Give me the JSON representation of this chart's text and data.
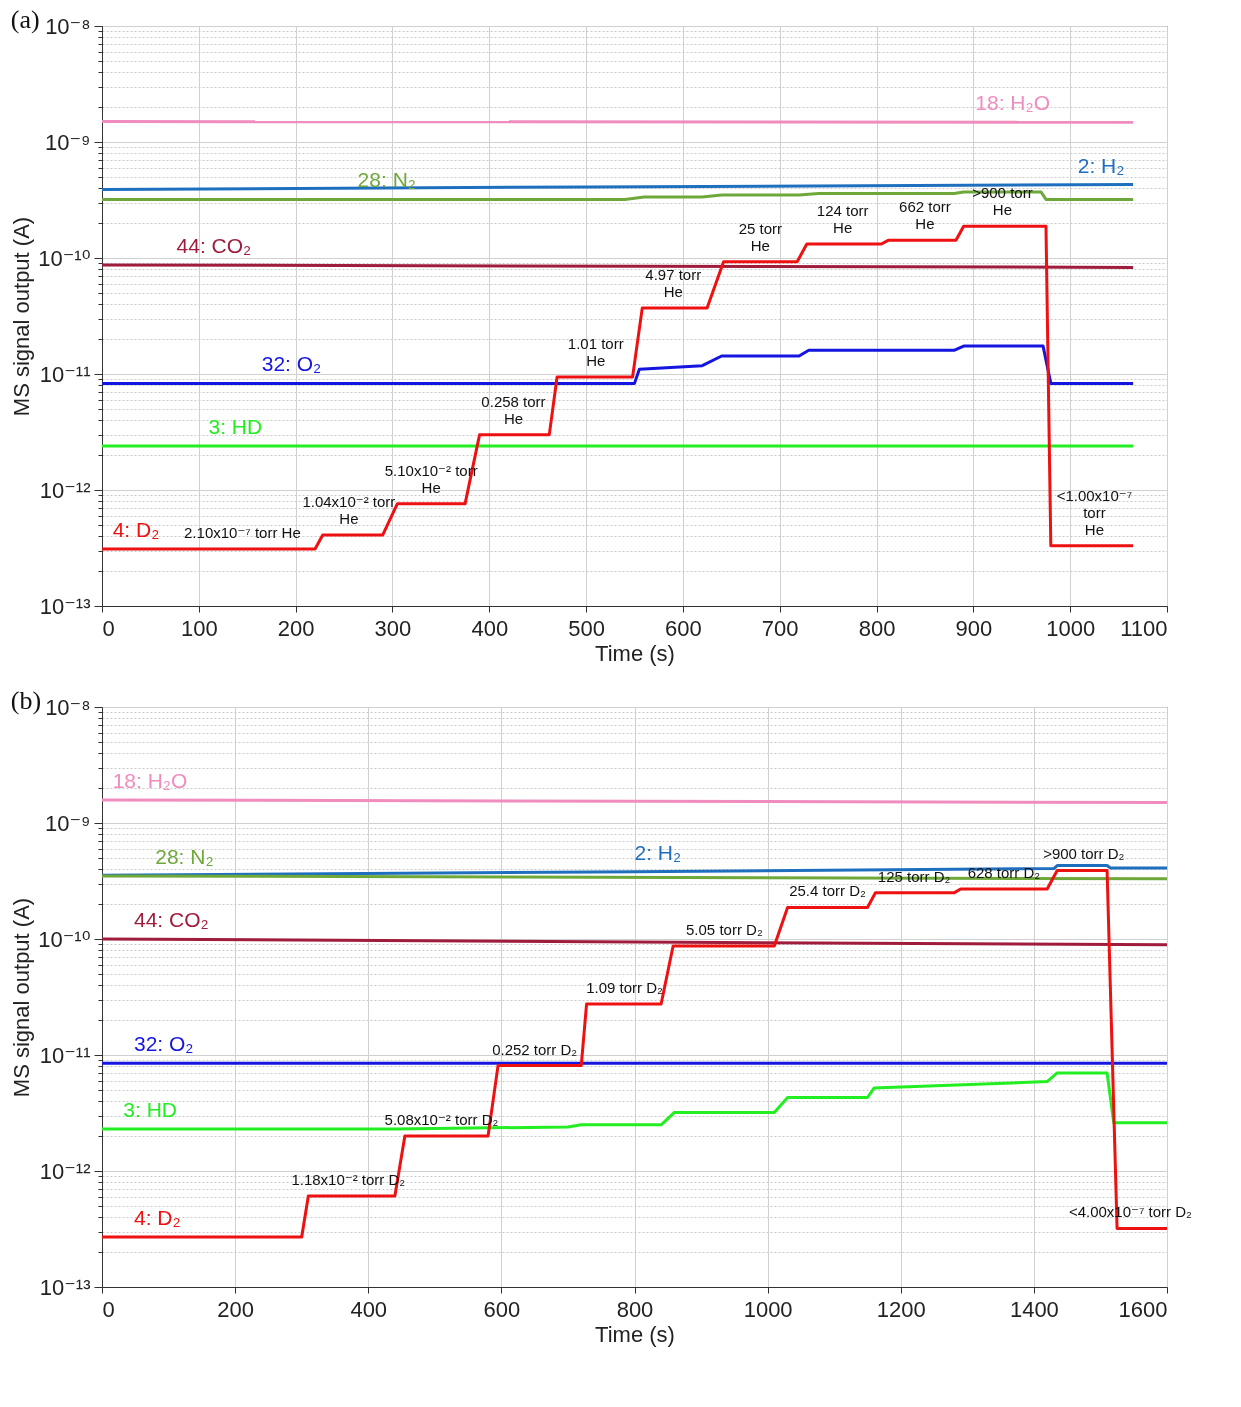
{
  "chart_data": [
    {
      "type": "line",
      "title": "(a)",
      "xlabel": "Time (s)",
      "ylabel": "MS signal output (A)",
      "log": true,
      "grid": true,
      "xlim": [
        0,
        1100
      ],
      "xticks": [
        0,
        100,
        200,
        300,
        400,
        500,
        600,
        700,
        800,
        900,
        1000,
        1100
      ],
      "ylim": [
        1e-13,
        1e-08
      ],
      "yticks": [
        {
          "value": 1e-13,
          "label": "10⁻¹³"
        },
        {
          "value": 2e-13,
          "label": null
        },
        {
          "value": 3e-13,
          "label": null
        },
        {
          "value": 4e-13,
          "label": null
        },
        {
          "value": 5e-13,
          "label": null
        },
        {
          "value": 6e-13,
          "label": null
        },
        {
          "value": 7e-13,
          "label": null
        },
        {
          "value": 8e-13,
          "label": null
        },
        {
          "value": 9e-13,
          "label": null
        },
        {
          "value": 1e-12,
          "label": "10⁻¹²"
        },
        {
          "value": 2e-12,
          "label": null
        },
        {
          "value": 3e-12,
          "label": null
        },
        {
          "value": 4e-12,
          "label": null
        },
        {
          "value": 5e-12,
          "label": null
        },
        {
          "value": 6e-12,
          "label": null
        },
        {
          "value": 7e-12,
          "label": null
        },
        {
          "value": 8e-12,
          "label": null
        },
        {
          "value": 9e-12,
          "label": null
        },
        {
          "value": 1e-11,
          "label": "10⁻¹¹"
        },
        {
          "value": 2e-11,
          "label": null
        },
        {
          "value": 3e-11,
          "label": null
        },
        {
          "value": 4e-11,
          "label": null
        },
        {
          "value": 5e-11,
          "label": null
        },
        {
          "value": 6e-11,
          "label": null
        },
        {
          "value": 7e-11,
          "label": null
        },
        {
          "value": 8e-11,
          "label": null
        },
        {
          "value": 9e-11,
          "label": null
        },
        {
          "value": 1e-10,
          "label": "10⁻¹⁰"
        },
        {
          "value": 2e-10,
          "label": null
        },
        {
          "value": 3e-10,
          "label": null
        },
        {
          "value": 4e-10,
          "label": null
        },
        {
          "value": 5e-10,
          "label": null
        },
        {
          "value": 6e-10,
          "label": null
        },
        {
          "value": 7e-10,
          "label": null
        },
        {
          "value": 8e-10,
          "label": null
        },
        {
          "value": 9e-10,
          "label": null
        },
        {
          "value": 1e-09,
          "label": "10⁻⁹"
        },
        {
          "value": 2e-09,
          "label": null
        },
        {
          "value": 3e-09,
          "label": null
        },
        {
          "value": 4e-09,
          "label": null
        },
        {
          "value": 5e-09,
          "label": null
        },
        {
          "value": 6e-09,
          "label": null
        },
        {
          "value": 7e-09,
          "label": null
        },
        {
          "value": 8e-09,
          "label": null
        },
        {
          "value": 9e-09,
          "label": null
        },
        {
          "value": 1e-08,
          "label": "10⁻⁸"
        }
      ],
      "series": [
        {
          "name": "18: H₂O",
          "color": "#f08cbe",
          "x": [
            0,
            1065
          ],
          "values": [
            1.5e-09,
            1.48e-09
          ]
        },
        {
          "name": "2: H₂",
          "color": "#1f6fbf",
          "x": [
            0,
            500,
            1065
          ],
          "values": [
            3.9e-10,
            4.1e-10,
            4.3e-10
          ]
        },
        {
          "name": "28: N₂",
          "color": "#6fa83a",
          "x": [
            0,
            540,
            560,
            620,
            640,
            720,
            740,
            880,
            890,
            970,
            975,
            1065
          ],
          "values": [
            3.2e-10,
            3.2e-10,
            3.35e-10,
            3.35e-10,
            3.5e-10,
            3.5e-10,
            3.6e-10,
            3.6e-10,
            3.7e-10,
            3.7e-10,
            3.2e-10,
            3.2e-10
          ]
        },
        {
          "name": "44: CO₂",
          "color": "#a01c3c",
          "x": [
            0,
            1065
          ],
          "values": [
            8.7e-11,
            8.3e-11
          ]
        },
        {
          "name": "32: O₂",
          "color": "#1515e0",
          "x": [
            0,
            550,
            555,
            620,
            640,
            720,
            730,
            880,
            890,
            972,
            980,
            1065
          ],
          "values": [
            8.3e-12,
            8.3e-12,
            1.1e-11,
            1.18e-11,
            1.43e-11,
            1.43e-11,
            1.6e-11,
            1.6e-11,
            1.74e-11,
            1.74e-11,
            8.3e-12,
            8.3e-12
          ]
        },
        {
          "name": "3: HD",
          "color": "#22ee22",
          "x": [
            0,
            1065
          ],
          "values": [
            2.4e-12,
            2.4e-12
          ]
        },
        {
          "name": "4: D₂",
          "color": "#ee1111",
          "x": [
            0,
            220,
            228,
            290,
            305,
            375,
            390,
            462,
            470,
            548,
            558,
            625,
            642,
            718,
            728,
            805,
            812,
            882,
            890,
            975,
            980,
            1065
          ],
          "values": [
            3.1e-13,
            3.1e-13,
            4.1e-13,
            4.1e-13,
            7.6e-13,
            7.6e-13,
            3e-12,
            3e-12,
            9.4e-12,
            9.4e-12,
            3.7e-11,
            3.7e-11,
            9.3e-11,
            9.3e-11,
            1.32e-10,
            1.32e-10,
            1.42e-10,
            1.42e-10,
            1.88e-10,
            1.88e-10,
            3.3e-13,
            3.3e-13
          ]
        }
      ],
      "annotations": [
        {
          "text": "2.10x10⁻⁷ torr He",
          "x": 145,
          "y": 3.1e-13
        },
        {
          "text": "1.04x10⁻² torr\nHe",
          "x": 255,
          "y": 4.1e-13
        },
        {
          "text": "5.10x10⁻² torr\nHe",
          "x": 340,
          "y": 7.6e-13
        },
        {
          "text": "0.258 torr\nHe",
          "x": 425,
          "y": 3e-12
        },
        {
          "text": "1.01 torr\nHe",
          "x": 510,
          "y": 9.4e-12
        },
        {
          "text": "4.97 torr\nHe",
          "x": 590,
          "y": 3.7e-11
        },
        {
          "text": "25 torr\nHe",
          "x": 680,
          "y": 9.3e-11
        },
        {
          "text": "124 torr\nHe",
          "x": 765,
          "y": 1.32e-10
        },
        {
          "text": "662 torr\nHe",
          "x": 850,
          "y": 1.42e-10
        },
        {
          "text": ">900 torr\nHe",
          "x": 930,
          "y": 1.88e-10
        },
        {
          "text": "<1.00x10⁻⁷\ntorr\nHe",
          "x": 1025,
          "y": 3.3e-13
        }
      ]
    },
    {
      "type": "line",
      "title": "(b)",
      "xlabel": "Time (s)",
      "ylabel": "MS signal output (A)",
      "log": true,
      "grid": true,
      "xlim": [
        0,
        1600
      ],
      "xticks": [
        0,
        200,
        400,
        600,
        800,
        1000,
        1200,
        1400,
        1600
      ],
      "ylim": [
        1e-13,
        1e-08
      ],
      "yticks": [
        {
          "value": 1e-13,
          "label": "10⁻¹³"
        },
        {
          "value": 2e-13,
          "label": null
        },
        {
          "value": 3e-13,
          "label": null
        },
        {
          "value": 4e-13,
          "label": null
        },
        {
          "value": 5e-13,
          "label": null
        },
        {
          "value": 6e-13,
          "label": null
        },
        {
          "value": 7e-13,
          "label": null
        },
        {
          "value": 8e-13,
          "label": null
        },
        {
          "value": 9e-13,
          "label": null
        },
        {
          "value": 1e-12,
          "label": "10⁻¹²"
        },
        {
          "value": 2e-12,
          "label": null
        },
        {
          "value": 3e-12,
          "label": null
        },
        {
          "value": 4e-12,
          "label": null
        },
        {
          "value": 5e-12,
          "label": null
        },
        {
          "value": 6e-12,
          "label": null
        },
        {
          "value": 7e-12,
          "label": null
        },
        {
          "value": 8e-12,
          "label": null
        },
        {
          "value": 9e-12,
          "label": null
        },
        {
          "value": 1e-11,
          "label": "10⁻¹¹"
        },
        {
          "value": 2e-11,
          "label": null
        },
        {
          "value": 3e-11,
          "label": null
        },
        {
          "value": 4e-11,
          "label": null
        },
        {
          "value": 5e-11,
          "label": null
        },
        {
          "value": 6e-11,
          "label": null
        },
        {
          "value": 7e-11,
          "label": null
        },
        {
          "value": 8e-11,
          "label": null
        },
        {
          "value": 9e-11,
          "label": null
        },
        {
          "value": 1e-10,
          "label": "10⁻¹⁰"
        },
        {
          "value": 2e-10,
          "label": null
        },
        {
          "value": 3e-10,
          "label": null
        },
        {
          "value": 4e-10,
          "label": null
        },
        {
          "value": 5e-10,
          "label": null
        },
        {
          "value": 6e-10,
          "label": null
        },
        {
          "value": 7e-10,
          "label": null
        },
        {
          "value": 8e-10,
          "label": null
        },
        {
          "value": 9e-10,
          "label": null
        },
        {
          "value": 1e-09,
          "label": "10⁻⁹"
        },
        {
          "value": 2e-09,
          "label": null
        },
        {
          "value": 3e-09,
          "label": null
        },
        {
          "value": 4e-09,
          "label": null
        },
        {
          "value": 5e-09,
          "label": null
        },
        {
          "value": 6e-09,
          "label": null
        },
        {
          "value": 7e-09,
          "label": null
        },
        {
          "value": 8e-09,
          "label": null
        },
        {
          "value": 9e-09,
          "label": null
        },
        {
          "value": 1e-08,
          "label": "10⁻⁸"
        }
      ],
      "series": [
        {
          "name": "18: H₂O",
          "color": "#f08cbe",
          "x": [
            0,
            1600
          ],
          "values": [
            1.58e-09,
            1.5e-09
          ]
        },
        {
          "name": "2: H₂",
          "color": "#1f6fbf",
          "x": [
            0,
            800,
            1430,
            1435,
            1510,
            1515,
            1600
          ],
          "values": [
            3.55e-10,
            3.8e-10,
            4.05e-10,
            4.3e-10,
            4.3e-10,
            4.1e-10,
            4.1e-10
          ]
        },
        {
          "name": "28: N₂",
          "color": "#6fa83a",
          "x": [
            0,
            1600
          ],
          "values": [
            3.5e-10,
            3.3e-10
          ]
        },
        {
          "name": "44: CO₂",
          "color": "#a01c3c",
          "x": [
            0,
            1600
          ],
          "values": [
            1e-10,
            8.9e-11
          ]
        },
        {
          "name": "32: O₂",
          "color": "#1515e0",
          "x": [
            0,
            1600
          ],
          "values": [
            8.5e-12,
            8.5e-12
          ]
        },
        {
          "name": "3: HD",
          "color": "#22ee22",
          "x": [
            0,
            440,
            700,
            720,
            840,
            860,
            1010,
            1030,
            1150,
            1160,
            1420,
            1435,
            1510,
            1520,
            1600
          ],
          "values": [
            2.3e-12,
            2.3e-12,
            2.4e-12,
            2.5e-12,
            2.5e-12,
            3.2e-12,
            3.2e-12,
            4.3e-12,
            4.3e-12,
            5.2e-12,
            5.9e-12,
            7e-12,
            7e-12,
            2.6e-12,
            2.6e-12
          ]
        },
        {
          "name": "4: D₂",
          "color": "#ee1111",
          "x": [
            0,
            300,
            310,
            440,
            455,
            580,
            595,
            720,
            728,
            840,
            858,
            1010,
            1030,
            1150,
            1162,
            1280,
            1290,
            1420,
            1435,
            1510,
            1525,
            1600
          ],
          "values": [
            2.7e-13,
            2.7e-13,
            6.1e-13,
            6.1e-13,
            2e-12,
            2e-12,
            8.1e-12,
            8.1e-12,
            2.75e-11,
            2.75e-11,
            8.7e-11,
            8.7e-11,
            1.87e-10,
            1.87e-10,
            2.5e-10,
            2.5e-10,
            2.7e-10,
            2.7e-10,
            3.9e-10,
            3.9e-10,
            3.2e-13,
            3.2e-13
          ]
        }
      ],
      "annotations": [
        {
          "text": "1.18x10⁻² torr D₂",
          "x": 370,
          "y": 6.1e-13
        },
        {
          "text": "5.08x10⁻² torr D₂",
          "x": 510,
          "y": 2e-12
        },
        {
          "text": "0.252 torr D₂",
          "x": 650,
          "y": 8.1e-12
        },
        {
          "text": "1.09 torr D₂",
          "x": 785,
          "y": 2.75e-11
        },
        {
          "text": "5.05 torr D₂",
          "x": 935,
          "y": 8.7e-11
        },
        {
          "text": "25.4 torr D₂",
          "x": 1090,
          "y": 1.87e-10
        },
        {
          "text": "125 torr D₂",
          "x": 1220,
          "y": 2.5e-10
        },
        {
          "text": "628 torr D₂",
          "x": 1355,
          "y": 2.7e-10
        },
        {
          "text": ">900 torr D₂",
          "x": 1475,
          "y": 3.9e-10
        },
        {
          "text": "<4.00x10⁻⁷ torr D₂",
          "x": 1545,
          "y": 3.2e-13
        }
      ]
    }
  ]
}
